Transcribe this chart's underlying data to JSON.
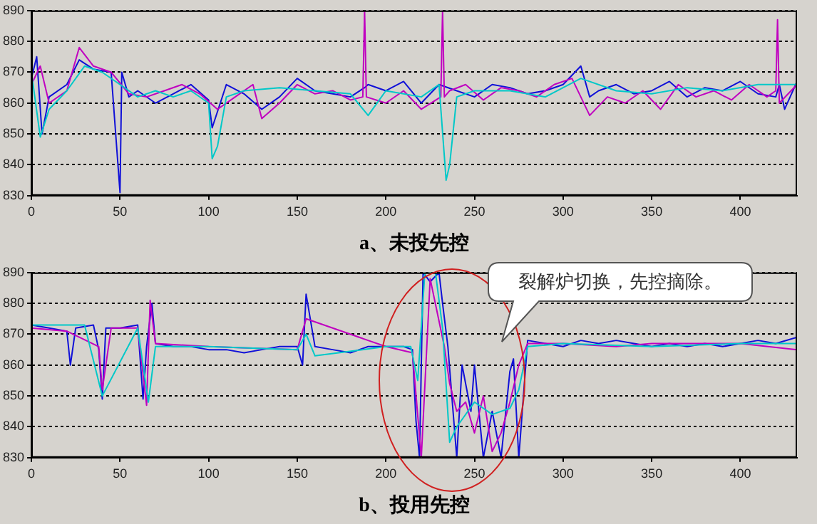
{
  "chart_data": [
    {
      "type": "line",
      "xlabel": "a、未投先控",
      "xlim": [
        0,
        432
      ],
      "xticks": [
        0,
        50,
        100,
        150,
        200,
        250,
        300,
        350,
        400
      ],
      "ylim": [
        830,
        890
      ],
      "yticks": [
        830,
        840,
        850,
        860,
        870,
        880,
        890
      ],
      "grid": "y",
      "legend": false,
      "marker": "none",
      "line_style": "solid",
      "series": [
        {
          "color": "#00c8c8",
          "x": [
            0,
            5,
            10,
            20,
            30,
            40,
            50,
            60,
            70,
            80,
            90,
            100,
            102,
            105,
            110,
            120,
            140,
            160,
            180,
            190,
            195,
            200,
            220,
            230,
            234,
            236,
            240,
            250,
            270,
            290,
            310,
            330,
            350,
            370,
            390,
            410,
            432
          ],
          "values": [
            870,
            849,
            858,
            864,
            872,
            870,
            866,
            862,
            864,
            862,
            864,
            860,
            842,
            846,
            862,
            864,
            865,
            864,
            863,
            856,
            860,
            864,
            862,
            866,
            835,
            840,
            862,
            864,
            864,
            862,
            868,
            864,
            863,
            865,
            864,
            866,
            866
          ]
        },
        {
          "color": "#c000c0",
          "x": [
            0,
            5,
            10,
            20,
            27,
            35,
            45,
            55,
            65,
            75,
            85,
            95,
            105,
            115,
            125,
            130,
            140,
            150,
            160,
            170,
            180,
            187,
            188,
            189,
            200,
            210,
            220,
            231,
            232,
            233,
            236,
            245,
            255,
            265,
            275,
            285,
            295,
            305,
            315,
            325,
            335,
            345,
            355,
            365,
            375,
            385,
            395,
            405,
            415,
            420,
            421,
            422,
            432
          ],
          "values": [
            866,
            872,
            860,
            864,
            878,
            872,
            870,
            863,
            862,
            864,
            866,
            863,
            858,
            862,
            866,
            855,
            860,
            866,
            863,
            864,
            861,
            862,
            890,
            862,
            860,
            864,
            858,
            862,
            890,
            862,
            864,
            866,
            861,
            865,
            864,
            862,
            866,
            868,
            856,
            862,
            860,
            864,
            858,
            866,
            862,
            864,
            861,
            866,
            862,
            864,
            887,
            860,
            866
          ]
        },
        {
          "color": "#1010d8",
          "x": [
            0,
            3,
            6,
            10,
            20,
            27,
            35,
            45,
            50,
            51,
            55,
            60,
            70,
            80,
            90,
            100,
            102,
            110,
            120,
            130,
            140,
            150,
            160,
            170,
            180,
            188,
            190,
            200,
            210,
            220,
            230,
            240,
            250,
            260,
            270,
            280,
            290,
            300,
            310,
            315,
            320,
            330,
            340,
            350,
            360,
            370,
            380,
            390,
            400,
            410,
            420,
            422,
            425,
            432
          ],
          "values": [
            868,
            875,
            850,
            862,
            866,
            874,
            871,
            870,
            831,
            870,
            862,
            864,
            860,
            863,
            866,
            861,
            852,
            866,
            863,
            858,
            862,
            868,
            864,
            863,
            862,
            865,
            866,
            864,
            867,
            860,
            866,
            864,
            862,
            866,
            865,
            863,
            864,
            866,
            872,
            862,
            864,
            866,
            863,
            864,
            867,
            862,
            865,
            864,
            867,
            863,
            862,
            866,
            858,
            867
          ]
        }
      ]
    },
    {
      "type": "line",
      "xlabel": "b、投用先控",
      "annotations": [
        "裂解炉切换，先控摘除。"
      ],
      "xlim": [
        0,
        432
      ],
      "xticks": [
        0,
        50,
        100,
        150,
        200,
        250,
        300,
        350,
        400
      ],
      "ylim": [
        830,
        890
      ],
      "yticks": [
        830,
        840,
        850,
        860,
        870,
        880,
        890
      ],
      "grid": "y",
      "legend": false,
      "marker": "none",
      "line_style": "solid",
      "series": [
        {
          "color": "#00c8c8",
          "x": [
            0,
            30,
            40,
            60,
            66,
            70,
            100,
            150,
            155,
            160,
            200,
            214,
            218,
            222,
            228,
            232,
            236,
            240,
            250,
            260,
            270,
            275,
            280,
            300,
            350,
            400,
            432
          ],
          "values": [
            873,
            873,
            850,
            872,
            848,
            866,
            866,
            865,
            870,
            863,
            866,
            866,
            855,
            890,
            890,
            872,
            835,
            840,
            848,
            844,
            846,
            852,
            866,
            867,
            866,
            867,
            867
          ]
        },
        {
          "color": "#c000c0",
          "x": [
            0,
            20,
            38,
            40,
            45,
            60,
            65,
            67,
            70,
            100,
            150,
            155,
            200,
            215,
            220,
            225,
            233,
            236,
            240,
            245,
            250,
            255,
            260,
            265,
            270,
            275,
            280,
            300,
            330,
            350,
            400,
            432
          ],
          "values": [
            872,
            871,
            866,
            852,
            872,
            872,
            847,
            881,
            867,
            866,
            865,
            875,
            866,
            864,
            830,
            888,
            866,
            854,
            845,
            848,
            838,
            850,
            832,
            838,
            848,
            860,
            867,
            867,
            866,
            867,
            867,
            865
          ]
        },
        {
          "color": "#1010d8",
          "x": [
            0,
            10,
            20,
            22,
            25,
            35,
            38,
            40,
            42,
            50,
            60,
            63,
            65,
            68,
            70,
            80,
            90,
            100,
            110,
            120,
            130,
            140,
            150,
            153,
            155,
            160,
            170,
            180,
            190,
            200,
            210,
            215,
            217,
            219,
            221,
            225,
            230,
            232,
            235,
            240,
            243,
            248,
            250,
            255,
            260,
            265,
            270,
            272,
            275,
            280,
            290,
            300,
            310,
            320,
            330,
            340,
            350,
            360,
            370,
            380,
            390,
            400,
            410,
            420,
            432
          ],
          "values": [
            873,
            872,
            871,
            860,
            872,
            873,
            865,
            849,
            872,
            872,
            873,
            849,
            866,
            880,
            867,
            866,
            866,
            865,
            865,
            864,
            865,
            866,
            866,
            860,
            883,
            866,
            865,
            864,
            866,
            866,
            866,
            865,
            842,
            830,
            890,
            887,
            890,
            880,
            866,
            830,
            860,
            845,
            860,
            830,
            845,
            830,
            858,
            862,
            830,
            868,
            867,
            866,
            868,
            867,
            868,
            867,
            866,
            867,
            866,
            867,
            866,
            867,
            868,
            867,
            869
          ]
        }
      ]
    }
  ]
}
